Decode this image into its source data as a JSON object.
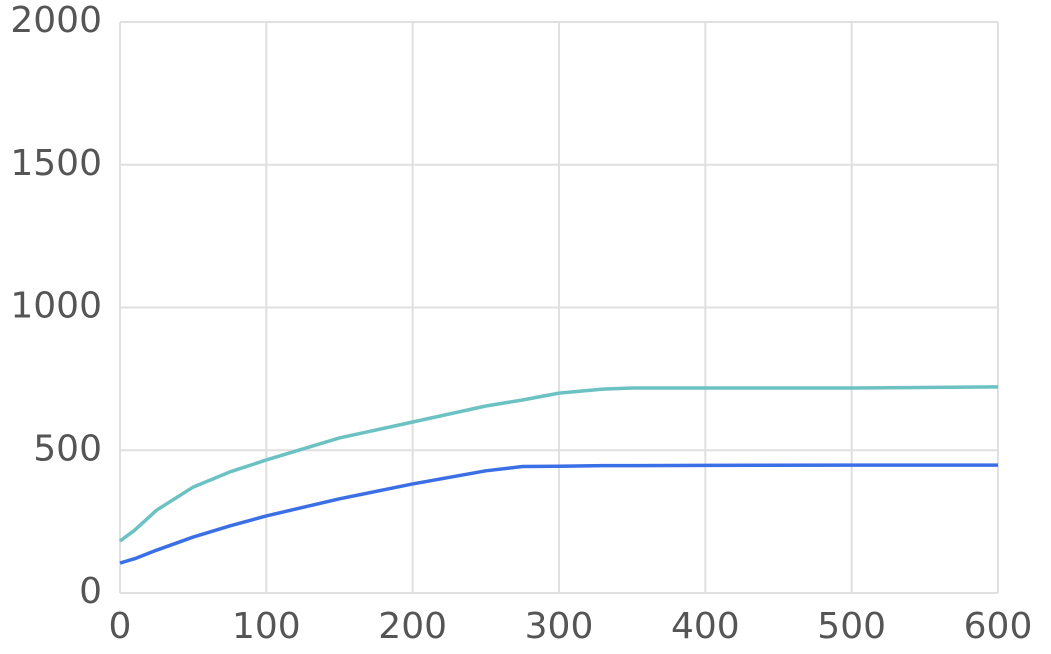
{
  "chart_data": {
    "type": "line",
    "x": [
      0,
      10,
      25,
      50,
      75,
      100,
      150,
      200,
      250,
      275,
      300,
      330,
      350,
      400,
      500,
      600
    ],
    "series": [
      {
        "color": "#6cc2c2",
        "values": [
          182,
          220,
          290,
          371,
          424,
          466,
          543,
          599,
          655,
          676,
          700,
          714,
          718,
          718,
          718,
          722
        ]
      },
      {
        "color": "#3b6fe6",
        "values": [
          105,
          120,
          150,
          196,
          235,
          270,
          330,
          382,
          428,
          443,
          444,
          446,
          446,
          447,
          448,
          448
        ]
      }
    ],
    "xlim": [
      0,
      600
    ],
    "xticks": [
      0,
      100,
      200,
      300,
      400,
      500,
      600
    ],
    "ylim": [
      0,
      2000
    ],
    "yticks": [
      0,
      500,
      1000,
      1500,
      2000
    ],
    "grid": true
  }
}
